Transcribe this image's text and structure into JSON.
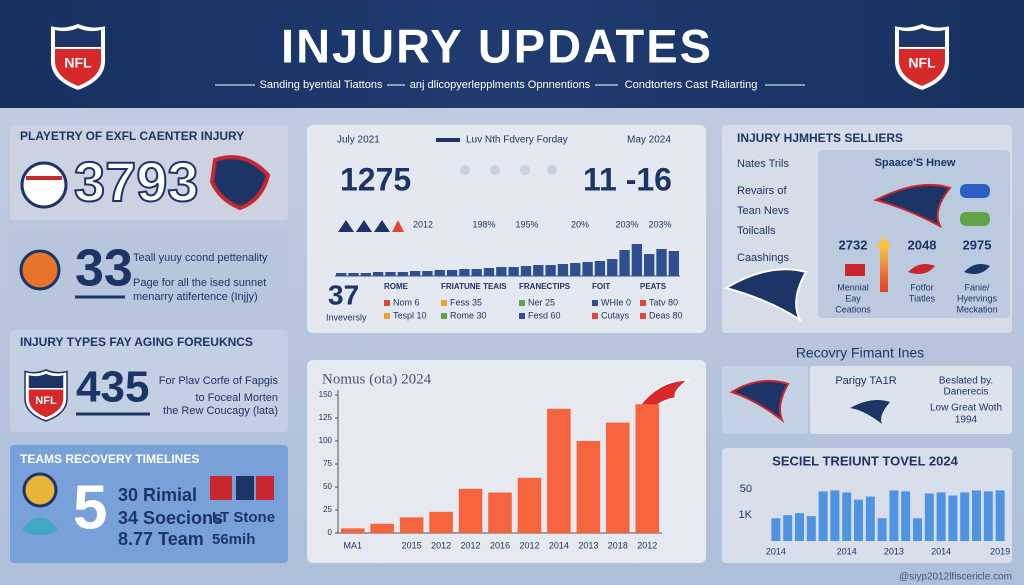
{
  "header": {
    "title": "INJURY UPDATES",
    "subtitle": [
      "Sanding byential Tiattons",
      "anj dlicopyerlepplments Opnnentions",
      "Condtorters Cast Raliarting"
    ],
    "logo": "NFL"
  },
  "panels": {
    "exfl": {
      "title": "PLAYETRY OF EXFL CAENTER INJURY",
      "stat": "3793"
    },
    "personality": {
      "stat": "33",
      "lines": [
        "Teall yuuy ccond pettenality",
        "Page for all the ised sunnet",
        "menarry atifertence (Injjy)"
      ]
    },
    "types": {
      "title": "INJURY TYPES FAY AGING FOREUKNCS",
      "logo": "NFL",
      "stat": "435",
      "lines": [
        "For Plav Corfe of Fapgis",
        "to Foceal Morten",
        "the Rew Coucagy (lata)"
      ]
    },
    "recovery": {
      "title": "TEAMS RECOVERY TIMELINES",
      "stat": "5",
      "lines": [
        "30 Rimial",
        "34 Soecions",
        "8.77 Team"
      ],
      "side": [
        "LT Stone",
        "56mih"
      ]
    }
  },
  "trend": {
    "date_start": "July 2021",
    "legend": "Luv Nth Fdvery Forday",
    "date_end": "May 2024",
    "stat_left": "1275",
    "stat_right": "11 -16",
    "labels": [
      "2012",
      "198%",
      "195%",
      "20%",
      "203%",
      "203%"
    ],
    "bars": [
      3,
      3,
      3,
      4,
      4,
      4,
      5,
      5,
      6,
      6,
      7,
      7,
      8,
      9,
      9,
      10,
      11,
      11,
      12,
      13,
      14,
      15,
      17,
      26,
      32,
      22,
      27,
      25
    ],
    "stat": "37",
    "stat_label": "Inveversly",
    "columns": [
      {
        "head": "ROME",
        "rows": [
          "Nom 6",
          "Tespl 10"
        ]
      },
      {
        "head": "FRIATUNE TEAIS",
        "rows": [
          "Fess 35",
          "Rome 30"
        ]
      },
      {
        "head": "FRANECTIPS",
        "rows": [
          "Ner 25",
          "Fesd 60"
        ]
      },
      {
        "head": "FOIT",
        "rows": [
          "WHIe 0",
          "Cutays"
        ]
      },
      {
        "head": "PEATS",
        "rows": [
          "Tatv 80",
          "Deas 80"
        ]
      }
    ]
  },
  "chart_data": [
    {
      "type": "bar",
      "title": "Nomus (ota) 2024",
      "categories": [
        "MA1",
        null,
        "2015",
        "2012",
        "2012",
        "2016",
        "2012",
        "2014",
        "2013",
        "2018",
        "2012"
      ],
      "values": [
        5,
        10,
        17,
        23,
        48,
        44,
        60,
        135,
        100,
        120,
        140
      ],
      "color": "#f5643c",
      "ylim": [
        0,
        150
      ],
      "yticks": [
        0,
        25,
        50,
        75,
        100,
        125,
        150
      ]
    },
    {
      "type": "bar",
      "title": "SECIEL TREIUNT TOVEL 2024",
      "categories": [
        "2014",
        null,
        null,
        null,
        null,
        null,
        "2014",
        null,
        null,
        null,
        "2013",
        null,
        null,
        null,
        "2014",
        null,
        null,
        null,
        null,
        "2019"
      ],
      "values": [
        22,
        25,
        27,
        24,
        48,
        49,
        47,
        40,
        43,
        22,
        49,
        48,
        22,
        46,
        47,
        44,
        47,
        49,
        48,
        49
      ],
      "color": "#4f93e3",
      "ylim": [
        0,
        60
      ],
      "yticks": [
        50,
        {
          "value": 25,
          "label": "1K"
        }
      ]
    }
  ],
  "sellers": {
    "title": "INJURY HJMHETS SELLIERS",
    "list": [
      "Nates Trils",
      "Revairs of",
      "Tean Nevs",
      "Toilcalls",
      "Caashings"
    ],
    "card_title": "Spaace'S Hnew",
    "stats": [
      {
        "value": "2732",
        "lines": [
          "Mennial",
          "Eay",
          "Ceations"
        ]
      },
      {
        "value": "2048",
        "lines": [
          "Fotfor",
          "Tiatles"
        ]
      },
      {
        "value": "2975",
        "lines": [
          "Fanie/",
          "Hyervings",
          "Meckation"
        ]
      }
    ]
  },
  "recovery_lines": {
    "title": "Recovry Fimant Ines",
    "card": "Parigy TA1R",
    "notes": [
      "Beslated by.",
      "Danerecis",
      "Low Great Woth",
      "1994"
    ]
  },
  "footer": "@siyp2012lfiscericle.com"
}
